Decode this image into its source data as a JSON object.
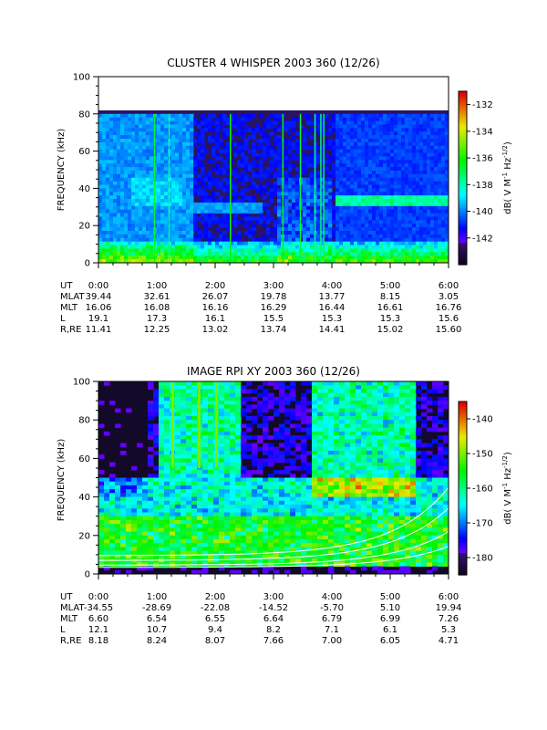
{
  "chart_data": [
    {
      "type": "heatmap",
      "title": "CLUSTER 4 WHISPER 2003 360 (12/26)",
      "ylabel": "FREQUENCY (kHz)",
      "ylim": [
        0,
        100
      ],
      "yticks": [
        0,
        20,
        40,
        60,
        80,
        100
      ],
      "xlim": [
        0,
        6
      ],
      "data_ceiling_khz": 80,
      "colorbar": {
        "label": "dB( V M⁻¹ Hz⁻¹ᐟ²)",
        "label_main": "dB( V M",
        "label_sup1": "-1",
        "label_mid": " Hz",
        "label_sup2": "-1/2",
        "label_end": ")",
        "range": [
          -144,
          -131
        ],
        "ticks": [
          "-132",
          "-134",
          "-136",
          "-138",
          "-140",
          "-142"
        ],
        "tick_values": [
          -132,
          -134,
          -136,
          -138,
          -140,
          -142
        ]
      },
      "ephemeris": {
        "labels": [
          "UT",
          "MLAT",
          "MLT",
          "L",
          "R,RE"
        ],
        "times": [
          "0:00",
          "1:00",
          "2:00",
          "3:00",
          "4:00",
          "5:00",
          "6:00"
        ],
        "rows": [
          [
            "39.44",
            "32.61",
            "26.07",
            "19.78",
            "13.77",
            "8.15",
            "3.05"
          ],
          [
            "16.06",
            "16.08",
            "16.16",
            "16.29",
            "16.44",
            "16.61",
            "16.76"
          ],
          [
            "19.1",
            "17.3",
            "16.1",
            "15.5",
            "15.3",
            "15.3",
            "15.6"
          ],
          [
            "11.41",
            "12.25",
            "13.02",
            "13.74",
            "14.41",
            "15.02",
            "15.60"
          ]
        ]
      }
    },
    {
      "type": "heatmap",
      "title": "IMAGE RPI XY 2003 360 (12/26)",
      "ylabel": "FREQUENCY (kHz)",
      "ylim": [
        0,
        100
      ],
      "yticks": [
        0,
        20,
        40,
        60,
        80,
        100
      ],
      "xlim": [
        0,
        6
      ],
      "colorbar": {
        "label_main": "dB( V M",
        "label_sup1": "-1",
        "label_mid": " Hz",
        "label_sup2": "-1/2",
        "label_end": ")",
        "range": [
          -185,
          -135
        ],
        "ticks": [
          "-140",
          "-150",
          "-160",
          "-170",
          "-180"
        ],
        "tick_values": [
          -140,
          -150,
          -160,
          -170,
          -180
        ]
      },
      "ephemeris": {
        "labels": [
          "UT",
          "MLAT",
          "MLT",
          "L",
          "R,RE"
        ],
        "times": [
          "0:00",
          "1:00",
          "2:00",
          "3:00",
          "4:00",
          "5:00",
          "6:00"
        ],
        "rows": [
          [
            "-34.55",
            "-28.69",
            "-22.08",
            "-14.52",
            "-5.70",
            "5.10",
            "19.94"
          ],
          [
            "6.60",
            "6.54",
            "6.55",
            "6.64",
            "6.79",
            "6.99",
            "7.26"
          ],
          [
            "12.1",
            "10.7",
            "9.4",
            "8.2",
            "7.1",
            "6.1",
            "5.3"
          ],
          [
            "8.18",
            "8.24",
            "8.07",
            "7.66",
            "7.00",
            "6.05",
            "4.71"
          ]
        ]
      }
    }
  ]
}
